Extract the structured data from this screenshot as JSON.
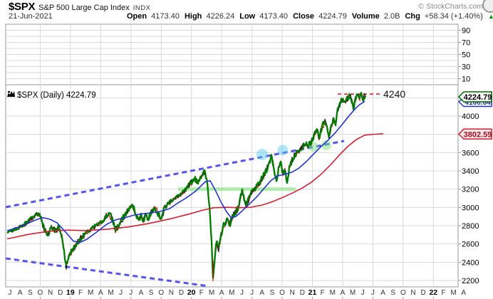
{
  "header": {
    "symbol": "$SPX",
    "name": "S&P 500 Large Cap Index",
    "exchange": "INDX",
    "credit": "© StockCharts.com",
    "date": "21-Jun-2021",
    "quote": [
      {
        "label": "Open",
        "value": "4173.40"
      },
      {
        "label": "High",
        "value": "4226.24"
      },
      {
        "label": "Low",
        "value": "4173.40"
      },
      {
        "label": "Close",
        "value": "4224.79"
      },
      {
        "label": "Volume",
        "value": "2.0B"
      },
      {
        "label": "Chg",
        "value": "+58.34 (+1.40%)"
      }
    ],
    "change_icon": "▲",
    "change_color": "#009900"
  },
  "chart_data": {
    "type": "line",
    "title": "$SPX (Daily) 4224.79",
    "x_axis": {
      "labels": [
        "J",
        "A",
        "S",
        "O",
        "N",
        "D",
        "19",
        "F",
        "M",
        "A",
        "M",
        "J",
        "J",
        "A",
        "S",
        "O",
        "N",
        "D",
        "20",
        "F",
        "M",
        "A",
        "M",
        "J",
        "J",
        "A",
        "S",
        "O",
        "N",
        "D",
        "21",
        "F",
        "M",
        "A",
        "M",
        "J",
        "J",
        "A",
        "S",
        "O",
        "N",
        "D",
        "22",
        "F",
        "M",
        "A"
      ],
      "bold_indices": [
        6,
        18,
        30,
        42
      ],
      "gridline_indices": [
        3,
        6,
        9,
        12,
        15,
        18,
        21,
        24,
        27,
        30,
        33,
        36,
        39,
        42
      ]
    },
    "y_axis": {
      "tick_labels": [
        4000,
        3800,
        3600,
        3400,
        3200,
        3000,
        2800,
        2600,
        2400,
        2200
      ],
      "gridline_values": [
        4200,
        4000,
        3800,
        3600,
        3400,
        3200,
        3000,
        2800,
        2600,
        2400,
        2200
      ],
      "range_note": "main panel price scale"
    },
    "indicator_panel": {
      "tick_labels": [
        90,
        70,
        50,
        30,
        10
      ],
      "gridline_values": [
        90,
        80,
        70,
        60,
        50,
        40,
        30,
        20,
        10
      ]
    },
    "series": [
      {
        "name": "price",
        "color": "#007a00",
        "wick_color": "#000000",
        "down_color": "#cc0000",
        "points": [
          [
            10,
            2725
          ],
          [
            22,
            2762
          ],
          [
            34,
            2812
          ],
          [
            44,
            2882
          ],
          [
            52,
            2932
          ],
          [
            57,
            2905
          ],
          [
            62,
            2768
          ],
          [
            67,
            2690
          ],
          [
            72,
            2795
          ],
          [
            78,
            2735
          ],
          [
            83,
            2790
          ],
          [
            88,
            2633
          ],
          [
            93,
            2355
          ],
          [
            97,
            2480
          ],
          [
            102,
            2542
          ],
          [
            108,
            2602
          ],
          [
            114,
            2666
          ],
          [
            121,
            2722
          ],
          [
            128,
            2762
          ],
          [
            134,
            2802
          ],
          [
            140,
            2822
          ],
          [
            147,
            2882
          ],
          [
            153,
            2937
          ],
          [
            158,
            2868
          ],
          [
            162,
            2752
          ],
          [
            168,
            2822
          ],
          [
            174,
            2902
          ],
          [
            180,
            2977
          ],
          [
            186,
            3022
          ],
          [
            191,
            2932
          ],
          [
            194,
            2862
          ],
          [
            198,
            2922
          ],
          [
            201,
            2852
          ],
          [
            205,
            2922
          ],
          [
            208,
            2872
          ],
          [
            213,
            2962
          ],
          [
            218,
            2997
          ],
          [
            222,
            2932
          ],
          [
            226,
            2882
          ],
          [
            231,
            2992
          ],
          [
            236,
            3042
          ],
          [
            241,
            3082
          ],
          [
            246,
            3107
          ],
          [
            252,
            3137
          ],
          [
            258,
            3172
          ],
          [
            264,
            3222
          ],
          [
            270,
            3292
          ],
          [
            274,
            3322
          ],
          [
            277,
            3272
          ],
          [
            281,
            3332
          ],
          [
            287,
            3392
          ],
          [
            291,
            3262
          ],
          [
            294,
            3012
          ],
          [
            297,
            2652
          ],
          [
            299,
            2245
          ],
          [
            302,
            2482
          ],
          [
            304,
            2622
          ],
          [
            307,
            2542
          ],
          [
            310,
            2682
          ],
          [
            313,
            2792
          ],
          [
            316,
            2832
          ],
          [
            319,
            2872
          ],
          [
            322,
            2802
          ],
          [
            326,
            2892
          ],
          [
            330,
            2942
          ],
          [
            334,
            2992
          ],
          [
            337,
            3082
          ],
          [
            340,
            3202
          ],
          [
            343,
            3082
          ],
          [
            346,
            3012
          ],
          [
            350,
            3112
          ],
          [
            354,
            3182
          ],
          [
            358,
            3202
          ],
          [
            362,
            3242
          ],
          [
            366,
            3292
          ],
          [
            370,
            3352
          ],
          [
            374,
            3412
          ],
          [
            378,
            3482
          ],
          [
            381,
            3572
          ],
          [
            385,
            3402
          ],
          [
            388,
            3292
          ],
          [
            391,
            3422
          ],
          [
            394,
            3482
          ],
          [
            397,
            3362
          ],
          [
            400,
            3422
          ],
          [
            403,
            3272
          ],
          [
            406,
            3422
          ],
          [
            410,
            3522
          ],
          [
            414,
            3572
          ],
          [
            418,
            3612
          ],
          [
            422,
            3642
          ],
          [
            426,
            3682
          ],
          [
            430,
            3702
          ],
          [
            433,
            3672
          ],
          [
            437,
            3722
          ],
          [
            441,
            3782
          ],
          [
            445,
            3852
          ],
          [
            448,
            3752
          ],
          [
            452,
            3882
          ],
          [
            456,
            3942
          ],
          [
            459,
            3872
          ],
          [
            462,
            3762
          ],
          [
            465,
            3892
          ],
          [
            468,
            3962
          ],
          [
            471,
            3922
          ],
          [
            474,
            4062
          ],
          [
            478,
            4152
          ],
          [
            481,
            4192
          ],
          [
            484,
            4162
          ],
          [
            487,
            4182
          ],
          [
            490,
            4232
          ],
          [
            493,
            4202
          ],
          [
            496,
            4082
          ],
          [
            499,
            4192
          ],
          [
            502,
            4222
          ],
          [
            505,
            4192
          ],
          [
            507,
            4252
          ],
          [
            509,
            4182
          ],
          [
            511,
            4212
          ],
          [
            513,
            4225
          ]
        ]
      },
      {
        "name": "ma50",
        "color": "#2233cc",
        "points": [
          [
            10,
            2745
          ],
          [
            30,
            2795
          ],
          [
            50,
            2862
          ],
          [
            60,
            2888
          ],
          [
            70,
            2870
          ],
          [
            80,
            2832
          ],
          [
            93,
            2722
          ],
          [
            103,
            2632
          ],
          [
            112,
            2616
          ],
          [
            122,
            2652
          ],
          [
            135,
            2726
          ],
          [
            150,
            2816
          ],
          [
            163,
            2866
          ],
          [
            175,
            2886
          ],
          [
            188,
            2916
          ],
          [
            200,
            2930
          ],
          [
            212,
            2940
          ],
          [
            225,
            2956
          ],
          [
            238,
            2986
          ],
          [
            250,
            3050
          ],
          [
            262,
            3106
          ],
          [
            275,
            3180
          ],
          [
            288,
            3280
          ],
          [
            295,
            3292
          ],
          [
            302,
            3192
          ],
          [
            310,
            3062
          ],
          [
            318,
            2952
          ],
          [
            325,
            2882
          ],
          [
            332,
            2906
          ],
          [
            340,
            2962
          ],
          [
            350,
            3036
          ],
          [
            360,
            3112
          ],
          [
            370,
            3202
          ],
          [
            380,
            3292
          ],
          [
            390,
            3346
          ],
          [
            400,
            3362
          ],
          [
            410,
            3386
          ],
          [
            420,
            3432
          ],
          [
            430,
            3502
          ],
          [
            440,
            3582
          ],
          [
            450,
            3662
          ],
          [
            460,
            3732
          ],
          [
            470,
            3812
          ],
          [
            480,
            3906
          ],
          [
            490,
            4002
          ],
          [
            500,
            4092
          ],
          [
            506,
            4132
          ],
          [
            512,
            4160
          ]
        ]
      },
      {
        "name": "ma200",
        "color": "#cc2233",
        "points": [
          [
            10,
            2655
          ],
          [
            40,
            2705
          ],
          [
            70,
            2740
          ],
          [
            95,
            2752
          ],
          [
            120,
            2746
          ],
          [
            150,
            2760
          ],
          [
            180,
            2786
          ],
          [
            210,
            2826
          ],
          [
            240,
            2876
          ],
          [
            265,
            2926
          ],
          [
            285,
            2971
          ],
          [
            300,
            2996
          ],
          [
            318,
            3001
          ],
          [
            335,
            2996
          ],
          [
            352,
            3001
          ],
          [
            368,
            3026
          ],
          [
            382,
            3061
          ],
          [
            396,
            3106
          ],
          [
            410,
            3156
          ],
          [
            424,
            3211
          ],
          [
            438,
            3281
          ],
          [
            452,
            3371
          ],
          [
            464,
            3466
          ],
          [
            476,
            3570
          ],
          [
            488,
            3666
          ],
          [
            500,
            3741
          ],
          [
            512,
            3791
          ],
          [
            526,
            3801
          ],
          [
            538,
            3806
          ]
        ]
      }
    ],
    "annotations": {
      "trendlines": [
        {
          "name": "upper-broadening-line",
          "x1": 8,
          "y1": 291,
          "x2": 483,
          "y2": 198,
          "color": "#4444ee",
          "dashed": true
        },
        {
          "name": "lower-broadening-line",
          "x1": 8,
          "y1": 363,
          "x2": 293,
          "y2": 402,
          "color": "#4444ee",
          "dashed": true
        }
      ],
      "support_band": {
        "value": 3200,
        "x1": 250,
        "x2": 415,
        "color": "rgba(128,226,126,0.6)"
      },
      "highlight_circles": [
        {
          "cx": 368,
          "cy": 217,
          "r": 8,
          "fill": "rgba(80,200,240,0.45)"
        },
        {
          "cx": 397,
          "cy": 211,
          "r": 7.5,
          "fill": "rgba(80,200,240,0.45)"
        },
        {
          "cx": 440,
          "cy": 206,
          "r": 7,
          "fill": "rgba(110,225,110,0.45)"
        },
        {
          "cx": 458,
          "cy": 204,
          "r": 7,
          "fill": "rgba(110,225,110,0.45)"
        }
      ],
      "price_level": {
        "label": "4240",
        "value": 4240,
        "x1": 474,
        "x2": 533,
        "label_x": 538,
        "color": "#ee2222"
      },
      "covid_wick": {
        "x": 299,
        "value_top": 2420,
        "value_bottom": 2191,
        "color": "#cc0000"
      },
      "axis_callouts": [
        {
          "text": "4224.79",
          "value": 4224.79,
          "style": "last-price",
          "bg": "#ffffff",
          "border": "#006600",
          "text_color": "#000000"
        },
        {
          "text": "4166.64",
          "value": 4166.64,
          "style": "ma50",
          "bg": "#ffffff",
          "border": "#2233cc",
          "text_color": "#223399",
          "partially_hidden": true
        },
        {
          "text": "3802.59",
          "value": 3802.59,
          "style": "ma200",
          "bg": "#ffe4e8",
          "border": "#cc2233",
          "text_color": "#991122"
        }
      ]
    }
  }
}
